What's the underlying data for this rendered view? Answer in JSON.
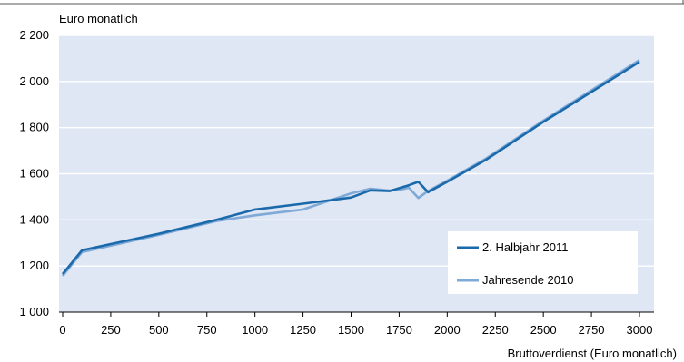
{
  "chart_data": {
    "type": "line",
    "title": "",
    "ylabel": "Euro monatlich",
    "xlabel": "Bruttoverdienst (Euro monatlich)",
    "xlim": [
      0,
      3000
    ],
    "ylim": [
      1000,
      2200
    ],
    "x_ticks": [
      0,
      250,
      500,
      750,
      1000,
      1250,
      1500,
      1750,
      2000,
      2250,
      2500,
      2750,
      3000
    ],
    "x_tick_labels": [
      "0",
      "250",
      "500",
      "750",
      "1000",
      "1250",
      "1500",
      "1750",
      "2000",
      "2250",
      "2500",
      "2750",
      "3000"
    ],
    "y_ticks": [
      1000,
      1200,
      1400,
      1600,
      1800,
      2000,
      2200
    ],
    "y_tick_labels": [
      "1 000",
      "1 200",
      "1 400",
      "1 600",
      "1 800",
      "2 000",
      "2 200"
    ],
    "grid": "horizontal",
    "legend_position": "bottom-right",
    "background_color": "#dfe6f4",
    "series": [
      {
        "name": "2. Halbjahr 2011",
        "color": "#1a6aab",
        "points": [
          [
            0,
            1165
          ],
          [
            100,
            1268
          ],
          [
            500,
            1340
          ],
          [
            800,
            1400
          ],
          [
            1000,
            1445
          ],
          [
            1250,
            1470
          ],
          [
            1500,
            1497
          ],
          [
            1600,
            1528
          ],
          [
            1700,
            1525
          ],
          [
            1800,
            1550
          ],
          [
            1850,
            1565
          ],
          [
            1900,
            1520
          ],
          [
            2000,
            1565
          ],
          [
            2200,
            1660
          ],
          [
            2500,
            1825
          ],
          [
            2750,
            1955
          ],
          [
            3000,
            2085
          ]
        ]
      },
      {
        "name": "Jahresende 2010",
        "color": "#7fa9d6",
        "points": [
          [
            0,
            1157
          ],
          [
            100,
            1260
          ],
          [
            500,
            1335
          ],
          [
            800,
            1395
          ],
          [
            1000,
            1420
          ],
          [
            1250,
            1445
          ],
          [
            1500,
            1515
          ],
          [
            1600,
            1535
          ],
          [
            1700,
            1527
          ],
          [
            1750,
            1530
          ],
          [
            1800,
            1540
          ],
          [
            1850,
            1495
          ],
          [
            1900,
            1525
          ],
          [
            2000,
            1570
          ],
          [
            2200,
            1665
          ],
          [
            2500,
            1830
          ],
          [
            2750,
            1962
          ],
          [
            3000,
            2093
          ]
        ]
      }
    ]
  }
}
